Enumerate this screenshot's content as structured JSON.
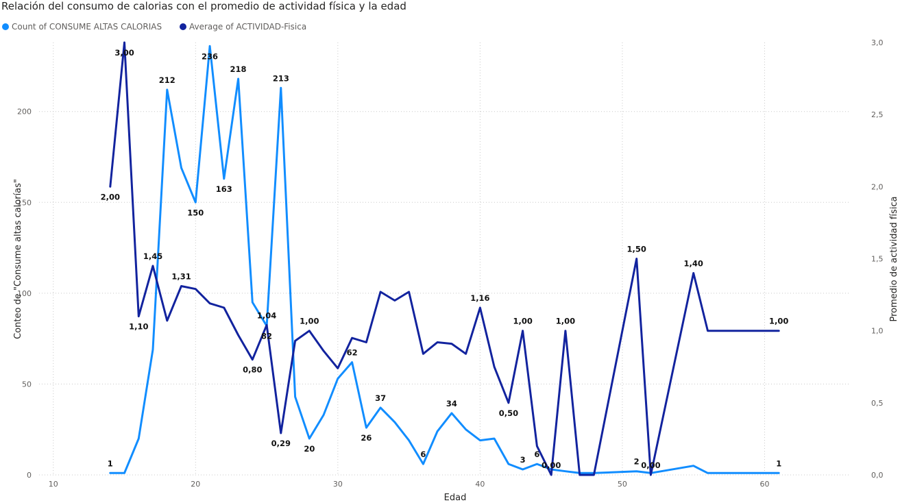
{
  "chart_data": {
    "type": "line",
    "title": "Relación del consumo de calorias con el promedio de actividad física y la edad",
    "xlabel": "Edad",
    "ylabel_left": "Conteo de \"Consume altas calorías\"",
    "ylabel_right": "Promedio de actividad física",
    "xlim": [
      9,
      66
    ],
    "ylim_left": [
      0,
      238
    ],
    "ylim_right": [
      0,
      3.0
    ],
    "x_ticks": [
      "10",
      "20",
      "30",
      "40",
      "50",
      "60"
    ],
    "y_left_ticks": [
      "0",
      "50",
      "100",
      "150",
      "200"
    ],
    "y_right_ticks": [
      "0,0",
      "0,5",
      "1,0",
      "1,5",
      "2,0",
      "2,5",
      "3,0"
    ],
    "grid": true,
    "legend_position": "top-left",
    "series": [
      {
        "name": "Count of CONSUME ALTAS CALORIAS",
        "axis": "left",
        "color": "#118dff",
        "x": [
          14,
          15,
          16,
          17,
          18,
          19,
          20,
          21,
          22,
          23,
          24,
          25,
          26,
          27,
          28,
          29,
          30,
          31,
          32,
          33,
          34,
          35,
          36,
          37,
          38,
          39,
          40,
          41,
          42,
          43,
          44,
          45,
          46,
          47,
          48,
          51,
          52,
          55,
          56,
          61
        ],
        "values": [
          1,
          1,
          20,
          69,
          212,
          169,
          150,
          236,
          163,
          218,
          95,
          82,
          213,
          43,
          20,
          33,
          53,
          62,
          26,
          37,
          29,
          19,
          6,
          24,
          34,
          25,
          19,
          20,
          6,
          3,
          6,
          3,
          2,
          1,
          1,
          2,
          1,
          5,
          1,
          1
        ],
        "labels": [
          {
            "x": 14,
            "text": "1",
            "pos": "above"
          },
          {
            "x": 18,
            "text": "212",
            "pos": "above"
          },
          {
            "x": 20,
            "text": "150",
            "pos": "below"
          },
          {
            "x": 21,
            "text": "236",
            "pos": "below"
          },
          {
            "x": 22,
            "text": "163",
            "pos": "below"
          },
          {
            "x": 23,
            "text": "218",
            "pos": "above"
          },
          {
            "x": 25,
            "text": "82",
            "pos": "below"
          },
          {
            "x": 26,
            "text": "213",
            "pos": "above"
          },
          {
            "x": 28,
            "text": "20",
            "pos": "below"
          },
          {
            "x": 31,
            "text": "62",
            "pos": "above"
          },
          {
            "x": 32,
            "text": "26",
            "pos": "below"
          },
          {
            "x": 33,
            "text": "37",
            "pos": "above"
          },
          {
            "x": 36,
            "text": "6",
            "pos": "above"
          },
          {
            "x": 38,
            "text": "34",
            "pos": "above"
          },
          {
            "x": 43,
            "text": "3",
            "pos": "above"
          },
          {
            "x": 44,
            "text": "6",
            "pos": "above"
          },
          {
            "x": 51,
            "text": "2",
            "pos": "above"
          },
          {
            "x": 61,
            "text": "1",
            "pos": "above"
          }
        ]
      },
      {
        "name": "Average of ACTIVIDAD-Fisica",
        "axis": "right",
        "color": "#12239e",
        "x": [
          14,
          15,
          16,
          17,
          18,
          19,
          20,
          21,
          22,
          23,
          24,
          25,
          26,
          27,
          28,
          29,
          30,
          31,
          32,
          33,
          34,
          35,
          36,
          37,
          38,
          39,
          40,
          41,
          42,
          43,
          44,
          45,
          46,
          47,
          48,
          51,
          52,
          55,
          56,
          61
        ],
        "values": [
          2.0,
          3.0,
          1.1,
          1.45,
          1.07,
          1.31,
          1.29,
          1.19,
          1.16,
          0.97,
          0.8,
          1.04,
          0.29,
          0.93,
          1.0,
          0.86,
          0.74,
          0.95,
          0.92,
          1.27,
          1.21,
          1.27,
          0.84,
          0.92,
          0.91,
          0.84,
          1.16,
          0.75,
          0.5,
          1.0,
          0.2,
          0.0,
          1.0,
          0.0,
          0.0,
          1.5,
          0.0,
          1.4,
          1.0,
          1.0
        ],
        "labels": [
          {
            "x": 14,
            "text": "2,00",
            "pos": "below"
          },
          {
            "x": 15,
            "text": "3,00",
            "pos": "below"
          },
          {
            "x": 16,
            "text": "1,10",
            "pos": "below"
          },
          {
            "x": 17,
            "text": "1,45",
            "pos": "above"
          },
          {
            "x": 19,
            "text": "1,31",
            "pos": "above"
          },
          {
            "x": 24,
            "text": "0,80",
            "pos": "below"
          },
          {
            "x": 25,
            "text": "1,04",
            "pos": "above"
          },
          {
            "x": 26,
            "text": "0,29",
            "pos": "below"
          },
          {
            "x": 28,
            "text": "1,00",
            "pos": "above"
          },
          {
            "x": 40,
            "text": "1,16",
            "pos": "above"
          },
          {
            "x": 42,
            "text": "0,50",
            "pos": "below"
          },
          {
            "x": 43,
            "text": "1,00",
            "pos": "above"
          },
          {
            "x": 45,
            "text": "0,00",
            "pos": "above"
          },
          {
            "x": 46,
            "text": "1,00",
            "pos": "above"
          },
          {
            "x": 51,
            "text": "1,50",
            "pos": "above"
          },
          {
            "x": 52,
            "text": "0,00",
            "pos": "above"
          },
          {
            "x": 55,
            "text": "1,40",
            "pos": "above"
          },
          {
            "x": 61,
            "text": "1,00",
            "pos": "above"
          }
        ]
      }
    ]
  }
}
